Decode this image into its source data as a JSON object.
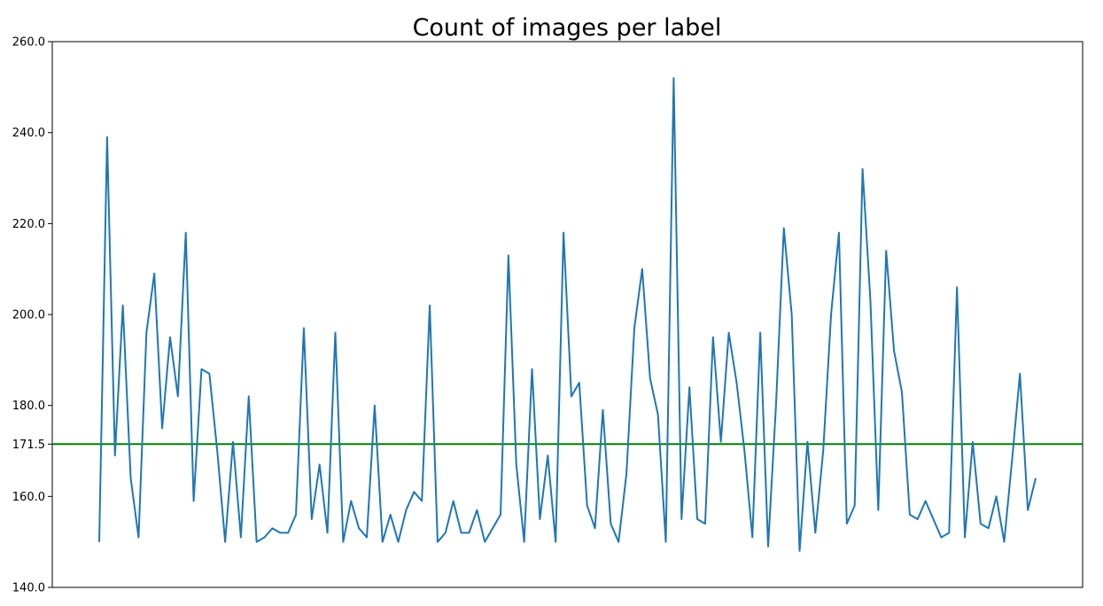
{
  "chart_data": {
    "type": "line",
    "title": "Count of images per label",
    "xlabel": "",
    "ylabel": "",
    "ylim": [
      140,
      260
    ],
    "yticks": [
      140.0,
      160.0,
      171.5,
      180.0,
      200.0,
      220.0,
      240.0,
      260.0
    ],
    "ytick_labels": [
      "140.0",
      "160.0",
      "171.5",
      "180.0",
      "200.0",
      "220.0",
      "240.0",
      "260.0"
    ],
    "x_ticks_visible": false,
    "grid": false,
    "reference_line": {
      "y": 171.5,
      "color": "#008000"
    },
    "series": [
      {
        "color": "#1f77b4",
        "values": [
          150,
          239,
          169,
          202,
          164,
          151,
          196,
          209,
          175,
          195,
          182,
          218,
          159,
          188,
          187,
          170,
          150,
          172,
          151,
          182,
          150,
          151,
          153,
          152,
          152,
          156,
          197,
          155,
          167,
          152,
          196,
          150,
          159,
          153,
          151,
          180,
          150,
          156,
          150,
          157,
          161,
          159,
          202,
          150,
          152,
          159,
          152,
          152,
          157,
          150,
          153,
          156,
          213,
          167,
          150,
          188,
          155,
          169,
          150,
          218,
          182,
          185,
          158,
          153,
          179,
          154,
          150,
          165,
          197,
          210,
          186,
          178,
          150,
          252,
          155,
          184,
          155,
          154,
          195,
          172,
          196,
          185,
          170,
          151,
          196,
          149,
          180,
          219,
          200,
          148,
          172,
          152,
          170,
          200,
          218,
          154,
          158,
          232,
          203,
          157,
          214,
          192,
          183,
          156,
          155,
          159,
          155,
          151,
          152,
          206,
          151,
          172,
          154,
          153,
          160,
          150,
          168,
          187,
          157,
          164
        ]
      }
    ]
  }
}
